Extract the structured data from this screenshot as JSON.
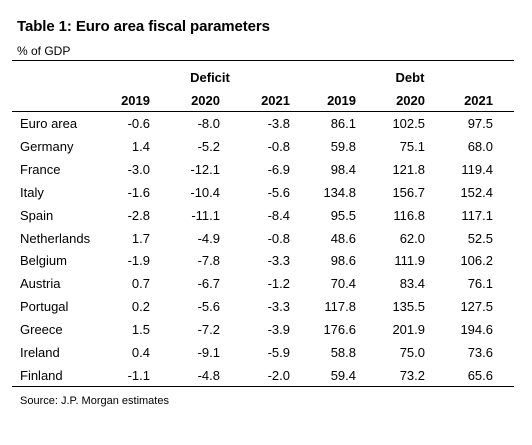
{
  "title": "Table 1: Euro area fiscal parameters",
  "subtitle": "% of GDP",
  "groups": {
    "deficit": "Deficit",
    "debt": "Debt"
  },
  "years": [
    "2019",
    "2020",
    "2021",
    "2019",
    "2020",
    "2021"
  ],
  "rows": [
    {
      "country": "Euro area",
      "values": [
        "-0.6",
        "-8.0",
        "-3.8",
        "86.1",
        "102.5",
        "97.5"
      ]
    },
    {
      "country": "Germany",
      "values": [
        "1.4",
        "-5.2",
        "-0.8",
        "59.8",
        "75.1",
        "68.0"
      ]
    },
    {
      "country": "France",
      "values": [
        "-3.0",
        "-12.1",
        "-6.9",
        "98.4",
        "121.8",
        "119.4"
      ]
    },
    {
      "country": "Italy",
      "values": [
        "-1.6",
        "-10.4",
        "-5.6",
        "134.8",
        "156.7",
        "152.4"
      ]
    },
    {
      "country": "Spain",
      "values": [
        "-2.8",
        "-11.1",
        "-8.4",
        "95.5",
        "116.8",
        "117.1"
      ]
    },
    {
      "country": "Netherlands",
      "values": [
        "1.7",
        "-4.9",
        "-0.8",
        "48.6",
        "62.0",
        "52.5"
      ]
    },
    {
      "country": "Belgium",
      "values": [
        "-1.9",
        "-7.8",
        "-3.3",
        "98.6",
        "111.9",
        "106.2"
      ]
    },
    {
      "country": "Austria",
      "values": [
        "0.7",
        "-6.7",
        "-1.2",
        "70.4",
        "83.4",
        "76.1"
      ]
    },
    {
      "country": "Portugal",
      "values": [
        "0.2",
        "-5.6",
        "-3.3",
        "117.8",
        "135.5",
        "127.5"
      ]
    },
    {
      "country": "Greece",
      "values": [
        "1.5",
        "-7.2",
        "-3.9",
        "176.6",
        "201.9",
        "194.6"
      ]
    },
    {
      "country": "Ireland",
      "values": [
        "0.4",
        "-9.1",
        "-5.9",
        "58.8",
        "75.0",
        "73.6"
      ]
    },
    {
      "country": "Finland",
      "values": [
        "-1.1",
        "-4.8",
        "-2.0",
        "59.4",
        "73.2",
        "65.6"
      ]
    }
  ],
  "source": "Source: J.P. Morgan estimates"
}
